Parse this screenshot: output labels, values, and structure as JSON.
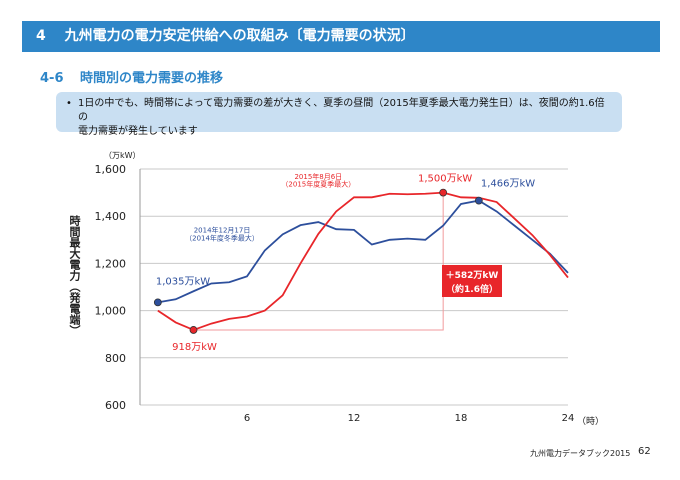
{
  "header": {
    "number": "4",
    "title": "九州電力の電力安定供給への取組み〔電力需要の状況〕"
  },
  "section": {
    "number": "4-6",
    "title": "時間別の電力需要の推移"
  },
  "summary": {
    "bullet": "•",
    "line1": "1日の中でも、時間帯によって電力需要の差が大きく、夏季の昼間（2015年夏季最大電力発生日）は、夜間の約1.6倍の",
    "line2": "電力需要が発生しています"
  },
  "chart_data": {
    "type": "line",
    "y_axis_title": "時間最大電力（発電端）",
    "y_unit": "（万kW）",
    "x_unit": "（時）",
    "xlim": [
      0,
      24
    ],
    "ylim": [
      600,
      1600
    ],
    "x_ticks": [
      6,
      12,
      18,
      24
    ],
    "y_ticks": [
      600,
      800,
      1000,
      1200,
      1400,
      1600
    ],
    "y_tick_labels": [
      "600",
      "800",
      "1,000",
      "1,200",
      "1,400",
      "1,600"
    ],
    "grid": true,
    "colors": {
      "winter": "#2d4f9c",
      "summer": "#e8262a",
      "guide": "#f29a9c"
    },
    "series": [
      {
        "key": "winter",
        "name_line1": "2014年12月17日",
        "name_line2": "（2014年度冬季最大）",
        "x": [
          1,
          2,
          3,
          4,
          5,
          6,
          7,
          8,
          9,
          10,
          11,
          12,
          13,
          14,
          15,
          16,
          17,
          18,
          19,
          20,
          21,
          22,
          23,
          24
        ],
        "values": [
          1035,
          1048,
          1082,
          1115,
          1120,
          1145,
          1255,
          1323,
          1362,
          1375,
          1345,
          1342,
          1280,
          1300,
          1305,
          1300,
          1360,
          1452,
          1466,
          1420,
          1360,
          1300,
          1240,
          1160
        ]
      },
      {
        "key": "summer",
        "name_line1": "2015年8月6日",
        "name_line2": "（2015年度夏季最大）",
        "x": [
          1,
          2,
          3,
          4,
          5,
          6,
          7,
          8,
          9,
          10,
          11,
          12,
          13,
          14,
          15,
          16,
          17,
          18,
          19,
          20,
          21,
          22,
          23,
          24
        ],
        "values": [
          1000,
          950,
          918,
          945,
          965,
          975,
          1000,
          1065,
          1200,
          1325,
          1420,
          1480,
          1480,
          1495,
          1493,
          1495,
          1500,
          1480,
          1478,
          1460,
          1390,
          1320,
          1235,
          1140
        ]
      }
    ],
    "annotations": {
      "min": {
        "x": 3,
        "y": 918,
        "label": "918万kW"
      },
      "peak": {
        "x": 17,
        "y": 1500,
        "label": "1,500万kW"
      },
      "winter_start": {
        "x": 1,
        "y": 1035,
        "label": "1,035万kW"
      },
      "winter_peak": {
        "x": 19,
        "y": 1466,
        "label": "1,466万kW"
      },
      "diff_label_line1": "＋582万kW",
      "diff_label_line2": "（約1.6倍）"
    }
  },
  "footer": {
    "text": "九州電力データブック2015",
    "page": "62"
  }
}
